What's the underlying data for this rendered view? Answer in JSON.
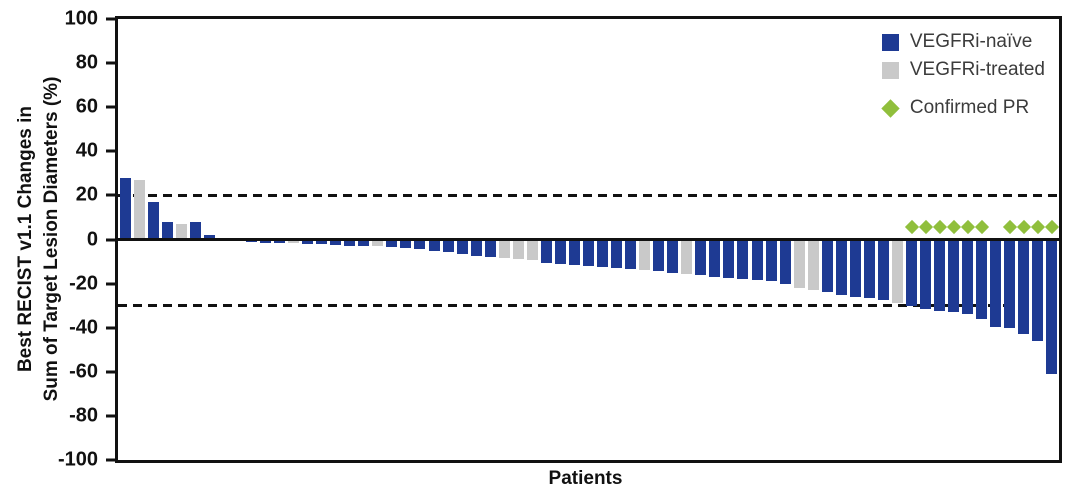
{
  "colors": {
    "naive": "#1e3a93",
    "treated": "#c9c9c9",
    "pr": "#90bf3c",
    "axis": "#111111"
  },
  "chart_data": {
    "type": "bar",
    "subtype": "waterfall",
    "title": "",
    "xlabel": "Patients",
    "ylabel_line1": "Best RECIST v1.1 Changes in",
    "ylabel_line2": "Sum of Target Lesion Diameters (%)",
    "ylim": [
      -100,
      100
    ],
    "yticks": [
      100,
      80,
      60,
      40,
      20,
      0,
      -20,
      -40,
      -60,
      -80,
      -100
    ],
    "grid": false,
    "reference_lines": [
      20,
      -30
    ],
    "legend_position": "top-right",
    "legend": [
      {
        "label": "VEGFRi-naïve",
        "marker": "square",
        "color_key": "naive"
      },
      {
        "label": "VEGFRi-treated",
        "marker": "square",
        "color_key": "treated"
      },
      {
        "label": "Confirmed PR",
        "marker": "diamond",
        "color_key": "pr"
      }
    ],
    "bars": [
      {
        "v": 28,
        "g": "naive"
      },
      {
        "v": 27,
        "g": "treated"
      },
      {
        "v": 17,
        "g": "naive"
      },
      {
        "v": 8,
        "g": "naive"
      },
      {
        "v": 7,
        "g": "treated"
      },
      {
        "v": 8,
        "g": "naive"
      },
      {
        "v": 2,
        "g": "naive"
      },
      {
        "v": 0,
        "g": "naive"
      },
      {
        "v": 0,
        "g": "naive"
      },
      {
        "v": -1,
        "g": "naive"
      },
      {
        "v": -1.5,
        "g": "naive"
      },
      {
        "v": -1.5,
        "g": "naive"
      },
      {
        "v": -1.5,
        "g": "treated"
      },
      {
        "v": -2,
        "g": "naive"
      },
      {
        "v": -2,
        "g": "naive"
      },
      {
        "v": -2.5,
        "g": "naive"
      },
      {
        "v": -3,
        "g": "naive"
      },
      {
        "v": -3,
        "g": "naive"
      },
      {
        "v": -3,
        "g": "treated"
      },
      {
        "v": -3.5,
        "g": "naive"
      },
      {
        "v": -4,
        "g": "naive"
      },
      {
        "v": -4.5,
        "g": "naive"
      },
      {
        "v": -5,
        "g": "naive"
      },
      {
        "v": -5.5,
        "g": "naive"
      },
      {
        "v": -6.5,
        "g": "naive"
      },
      {
        "v": -7.5,
        "g": "naive"
      },
      {
        "v": -8,
        "g": "naive"
      },
      {
        "v": -8.5,
        "g": "treated"
      },
      {
        "v": -9,
        "g": "treated"
      },
      {
        "v": -9.5,
        "g": "treated"
      },
      {
        "v": -10.5,
        "g": "naive"
      },
      {
        "v": -11,
        "g": "naive"
      },
      {
        "v": -11.5,
        "g": "naive"
      },
      {
        "v": -12,
        "g": "naive"
      },
      {
        "v": -12.5,
        "g": "naive"
      },
      {
        "v": -13,
        "g": "naive"
      },
      {
        "v": -13.5,
        "g": "naive"
      },
      {
        "v": -14,
        "g": "treated"
      },
      {
        "v": -14.5,
        "g": "naive"
      },
      {
        "v": -15,
        "g": "naive"
      },
      {
        "v": -15.5,
        "g": "treated"
      },
      {
        "v": -16,
        "g": "naive"
      },
      {
        "v": -17,
        "g": "naive"
      },
      {
        "v": -17.5,
        "g": "naive"
      },
      {
        "v": -18,
        "g": "naive"
      },
      {
        "v": -18.5,
        "g": "naive"
      },
      {
        "v": -19,
        "g": "naive"
      },
      {
        "v": -20,
        "g": "naive"
      },
      {
        "v": -22,
        "g": "treated"
      },
      {
        "v": -23,
        "g": "treated"
      },
      {
        "v": -24,
        "g": "naive"
      },
      {
        "v": -25,
        "g": "naive"
      },
      {
        "v": -26,
        "g": "naive"
      },
      {
        "v": -26.5,
        "g": "naive"
      },
      {
        "v": -27.5,
        "g": "naive"
      },
      {
        "v": -29,
        "g": "treated"
      },
      {
        "v": -30,
        "g": "naive",
        "pr": true
      },
      {
        "v": -31.5,
        "g": "naive",
        "pr": true
      },
      {
        "v": -32.5,
        "g": "naive",
        "pr": true
      },
      {
        "v": -33,
        "g": "naive",
        "pr": true
      },
      {
        "v": -34,
        "g": "naive",
        "pr": true
      },
      {
        "v": -36,
        "g": "naive",
        "pr": true
      },
      {
        "v": -39.5,
        "g": "naive"
      },
      {
        "v": -40,
        "g": "naive",
        "pr": true
      },
      {
        "v": -43,
        "g": "naive",
        "pr": true
      },
      {
        "v": -46,
        "g": "naive",
        "pr": true
      },
      {
        "v": -61,
        "g": "naive",
        "pr": true
      }
    ]
  }
}
